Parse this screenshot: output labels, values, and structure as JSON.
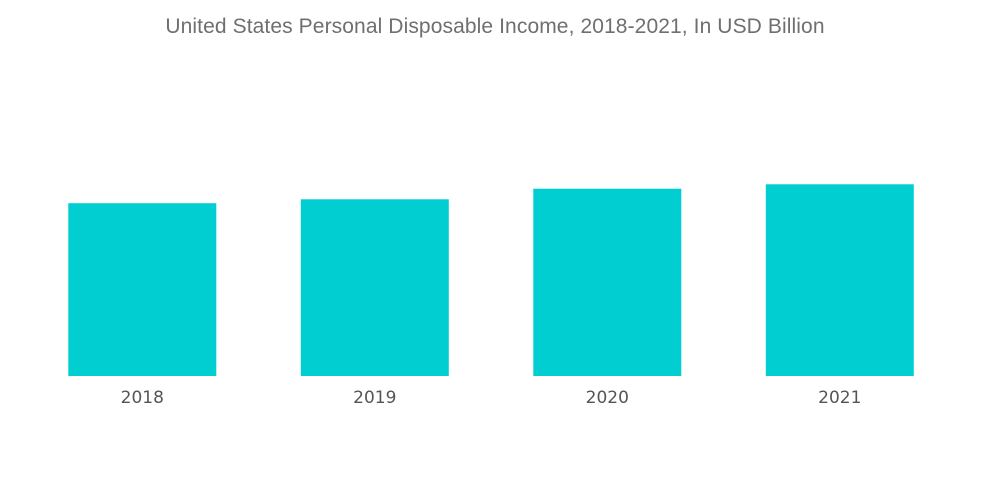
{
  "chart_data": {
    "type": "bar",
    "title": "United States Personal Disposable Income, 2018-2021, In USD Billion",
    "categories": [
      "2018",
      "2019",
      "2020",
      "2021"
    ],
    "series": [
      {
        "values": [
          15500,
          15850,
          16800,
          17200
        ]
      }
    ],
    "xlabel": "",
    "ylabel": "",
    "ylim": [
      0,
      30500
    ],
    "grid": false,
    "legend": "none",
    "bar_color": "#00CED1"
  }
}
